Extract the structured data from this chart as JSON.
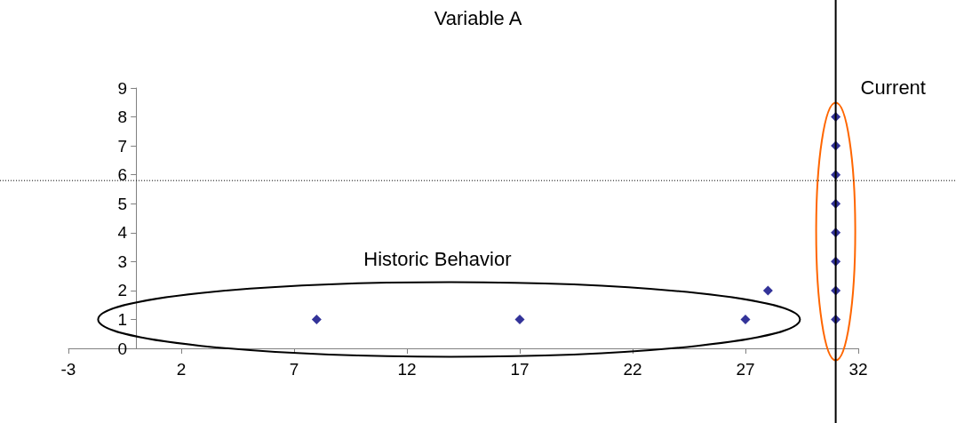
{
  "chart_data": {
    "type": "scatter",
    "title": "Variable A",
    "x": [
      8,
      17,
      27,
      28,
      31,
      31,
      31,
      31,
      31,
      31,
      31,
      31
    ],
    "series": [
      {
        "color": "#000080",
        "values": [
          1,
          1,
          1,
          2,
          1,
          2,
          3,
          4,
          5,
          6,
          7,
          8
        ]
      }
    ],
    "xlim": [
      -3,
      32
    ],
    "xticks": [
      -3,
      2,
      7,
      12,
      17,
      22,
      27,
      32
    ],
    "ylim": [
      0,
      9
    ],
    "yticks": [
      0,
      1,
      2,
      3,
      4,
      5,
      6,
      7,
      8,
      9
    ],
    "ref_lines": [
      {
        "axis": "x",
        "value": 31,
        "label": "Current",
        "color": "#000000",
        "line_style": "solid"
      },
      {
        "axis": "y",
        "value": 5.8,
        "color": "#000000",
        "line_style": "dotted"
      }
    ],
    "annotations": [
      "Historic Behavior"
    ],
    "grid": false,
    "marker": "diamond"
  }
}
